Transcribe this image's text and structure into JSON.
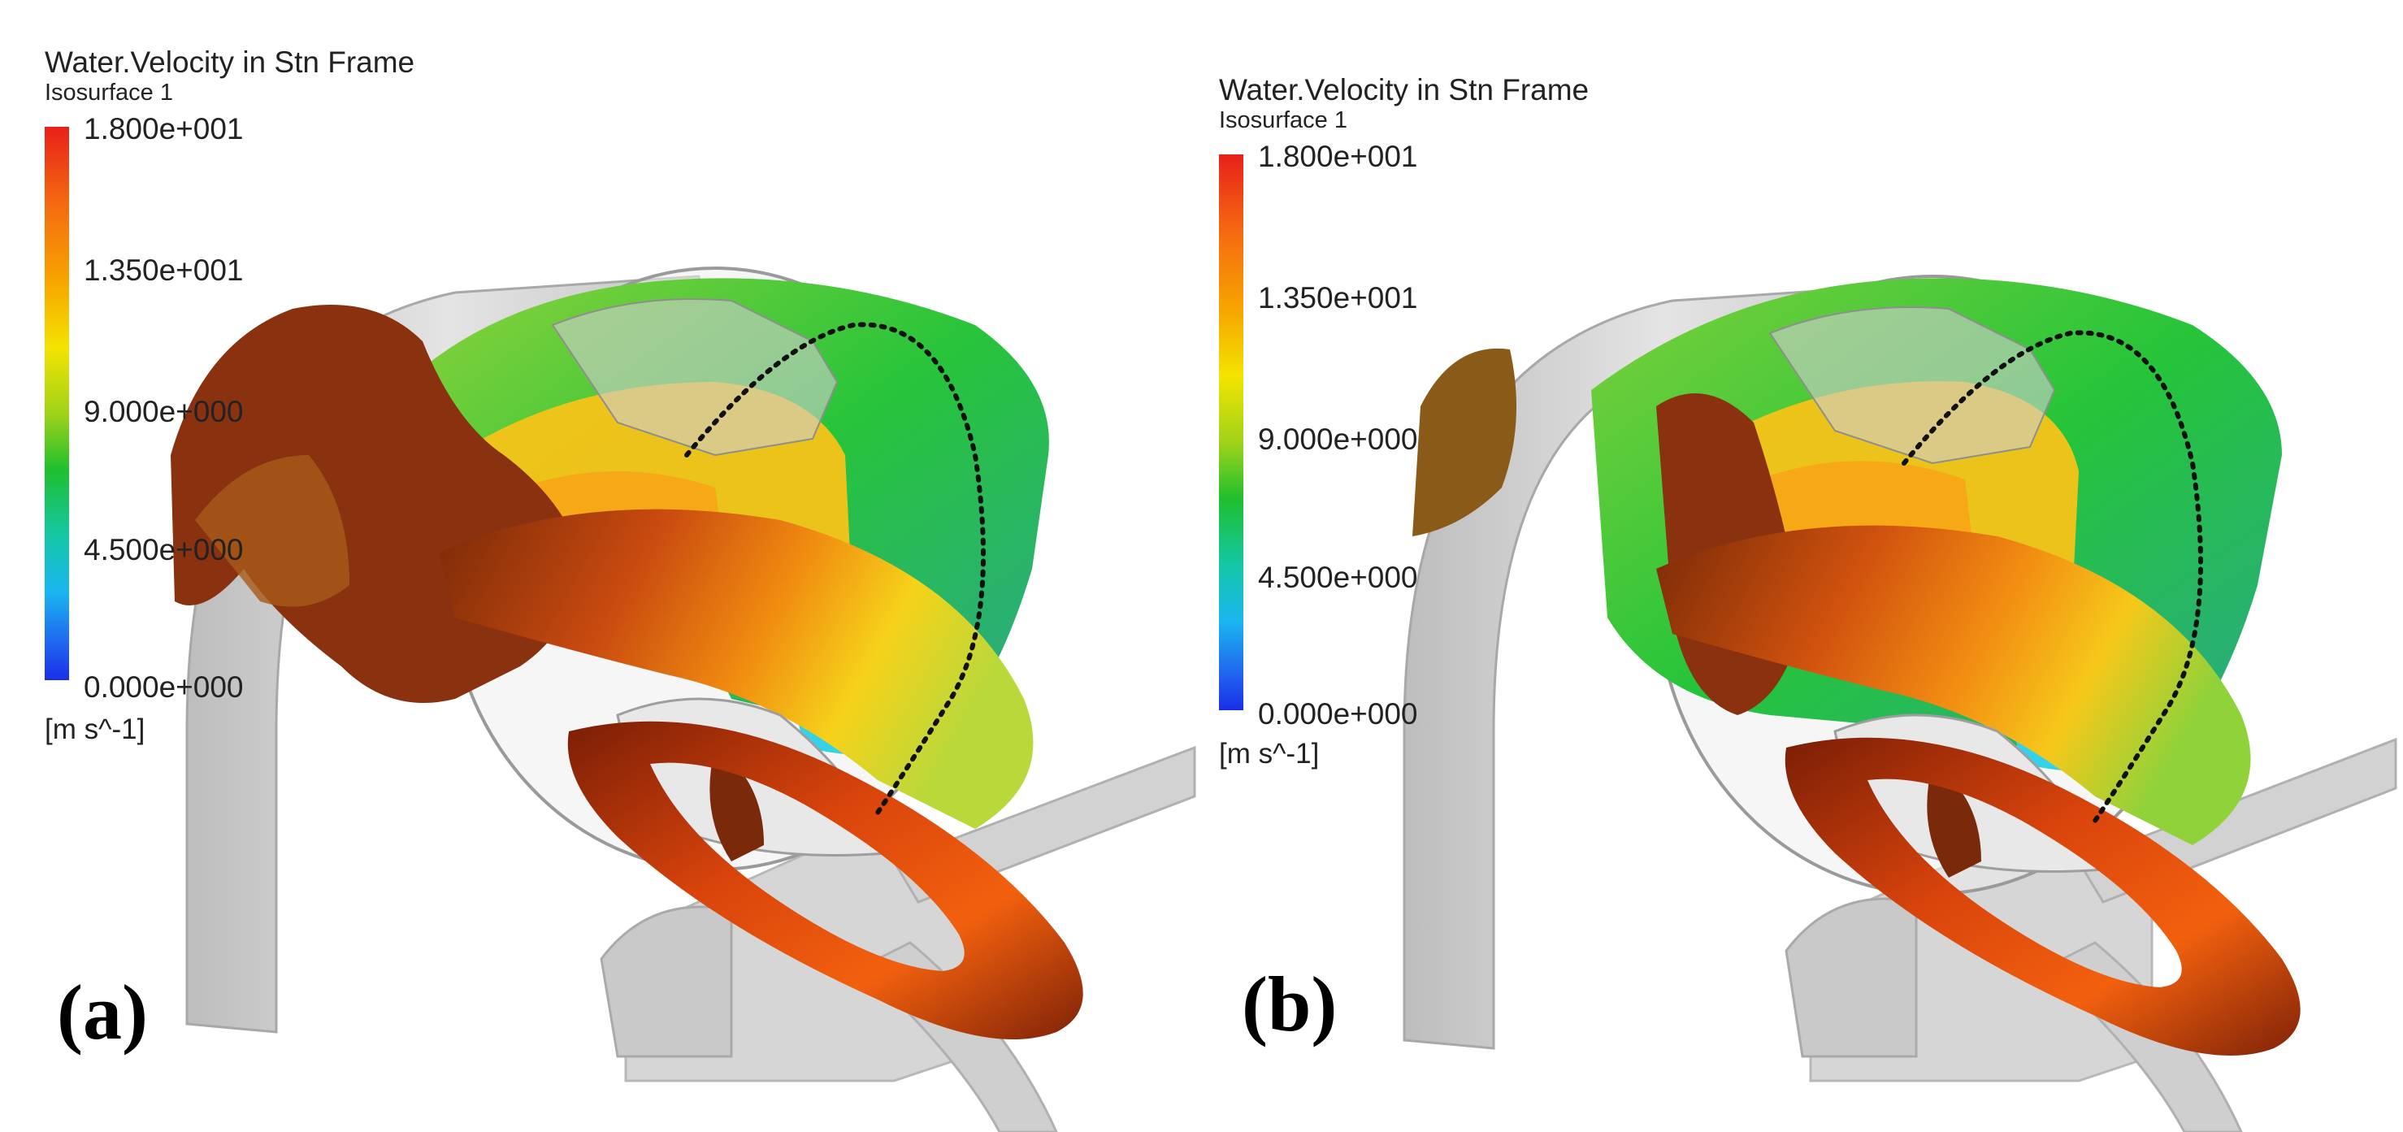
{
  "panels": [
    {
      "label": "(a)",
      "legend": {
        "title": "Water.Velocity in Stn Frame",
        "subtitle": "Isosurface 1",
        "ticks": [
          "1.800e+001",
          "1.350e+001",
          "9.000e+000",
          "4.500e+000",
          "0.000e+000"
        ],
        "unit": "[m s^-1]"
      }
    },
    {
      "label": "(b)",
      "legend": {
        "title": "Water.Velocity in Stn Frame",
        "subtitle": "Isosurface 1",
        "ticks": [
          "1.800e+001",
          "1.350e+001",
          "9.000e+000",
          "4.500e+000",
          "0.000e+000"
        ],
        "unit": "[m s^-1]"
      }
    }
  ],
  "colors": {
    "high": "#e8211a",
    "upper": "#f7a500",
    "mid_high": "#f3e400",
    "mid": "#1fbf2e",
    "low": "#1ab6f0",
    "min": "#1a2ee8",
    "geometry": "#d9d9d9",
    "dark_flow": "#6e1a06"
  }
}
